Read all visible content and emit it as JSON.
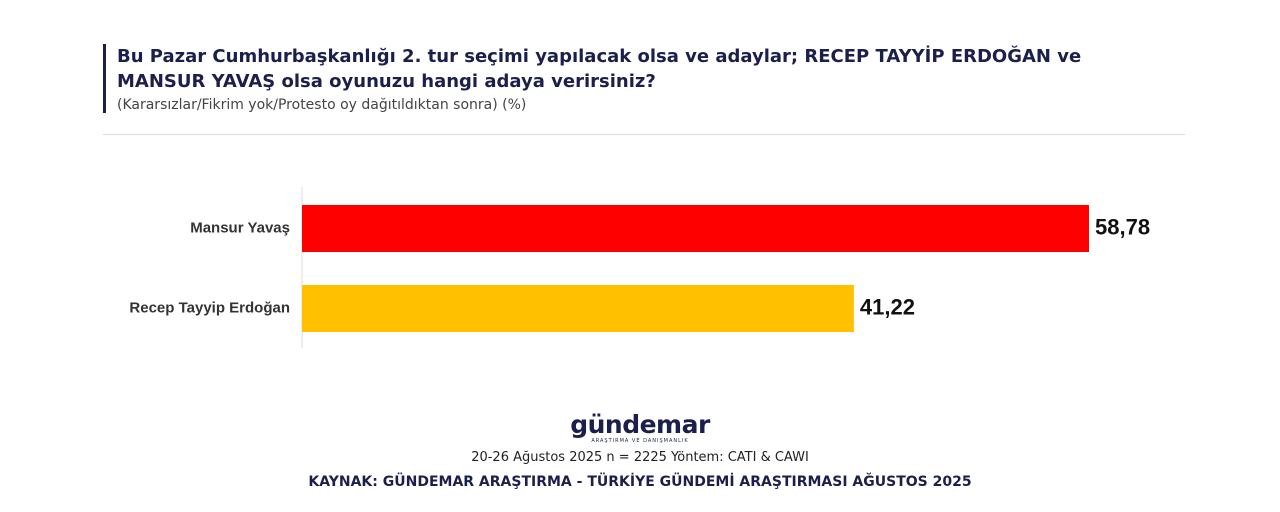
{
  "chart_data": {
    "type": "bar",
    "orientation": "horizontal",
    "title": "Bu Pazar Cumhurbaşkanlığı 2. tur seçimi yapılacak olsa ve adaylar; RECEP TAYYİP ERDOĞAN ve MANSUR YAVAŞ olsa oyunuzu hangi adaya verirsiniz?",
    "subtitle": "(Kararsızlar/Fikrim yok/Protesto oy dağıtıldıktan sonra) (%)",
    "categories": [
      "Mansur Yavaş",
      "Recep Tayyip Erdoğan"
    ],
    "values": [
      58.78,
      41.22
    ],
    "value_labels": [
      "58,78",
      "41,22"
    ],
    "colors": [
      "#ff0000",
      "#ffc000"
    ]
  },
  "footer": {
    "logo": "gündemar",
    "logo_tagline": "ARAŞTIRMA VE DANIŞMANLIK",
    "method": "20-26 Ağustos 2025 n = 2225 Yöntem: CATI & CAWI",
    "source": "KAYNAK: GÜNDEMAR ARAŞTIRMA - TÜRKİYE GÜNDEMİ ARAŞTIRMASI AĞUSTOS 2025"
  }
}
